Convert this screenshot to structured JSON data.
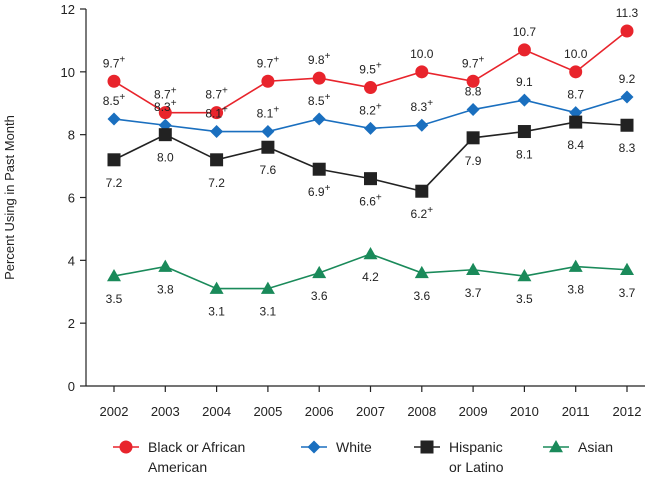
{
  "chart_data": {
    "type": "line",
    "title": "",
    "xlabel": "",
    "ylabel": "Percent Using in Past Month",
    "ylim": [
      0,
      12
    ],
    "yticks": [
      0,
      2,
      4,
      6,
      8,
      10,
      12
    ],
    "categories": [
      "2002",
      "2003",
      "2004",
      "2005",
      "2006",
      "2007",
      "2008",
      "2009",
      "2010",
      "2011",
      "2012"
    ],
    "legend_position": "bottom",
    "series": [
      {
        "key": "black",
        "name": "Black or African American",
        "legend_lines": [
          "Black or African",
          "American"
        ],
        "color": "#e8242c",
        "marker": "circle",
        "values": [
          9.7,
          8.7,
          8.7,
          9.7,
          9.8,
          9.5,
          10.0,
          9.7,
          10.7,
          10.0,
          11.3
        ],
        "labels": [
          "9.7+",
          "8.7+",
          "8.7+",
          "9.7+",
          "9.8+",
          "9.5+",
          "10.0",
          "9.7+",
          "10.7",
          "10.0",
          "11.3"
        ],
        "label_pos": "above"
      },
      {
        "key": "white",
        "name": "White",
        "legend_lines": [
          "White"
        ],
        "color": "#1a6fbf",
        "marker": "diamond",
        "values": [
          8.5,
          8.3,
          8.1,
          8.1,
          8.5,
          8.2,
          8.3,
          8.8,
          9.1,
          8.7,
          9.2
        ],
        "labels": [
          "8.5+",
          "8.3+",
          "8.1+",
          "8.1+",
          "8.5+",
          "8.2+",
          "8.3+",
          "8.8",
          "9.1",
          "8.7",
          "9.2"
        ],
        "label_pos": "above"
      },
      {
        "key": "hispanic",
        "name": "Hispanic or Latino",
        "legend_lines": [
          "Hispanic",
          "or Latino"
        ],
        "color": "#222222",
        "marker": "square",
        "values": [
          7.2,
          8.0,
          7.2,
          7.6,
          6.9,
          6.6,
          6.2,
          7.9,
          8.1,
          8.4,
          8.3
        ],
        "labels": [
          "7.2",
          "8.0",
          "7.2",
          "7.6",
          "6.9+",
          "6.6+",
          "6.2+",
          "7.9",
          "8.1",
          "8.4",
          "8.3"
        ],
        "label_pos": "below"
      },
      {
        "key": "asian",
        "name": "Asian",
        "legend_lines": [
          "Asian"
        ],
        "color": "#1a8a5a",
        "marker": "triangle",
        "values": [
          3.5,
          3.8,
          3.1,
          3.1,
          3.6,
          4.2,
          3.6,
          3.7,
          3.5,
          3.8,
          3.7
        ],
        "labels": [
          "3.5",
          "3.8",
          "3.1",
          "3.1",
          "3.6",
          "4.2",
          "3.6",
          "3.7",
          "3.5",
          "3.8",
          "3.7"
        ],
        "label_pos": "below"
      }
    ]
  }
}
